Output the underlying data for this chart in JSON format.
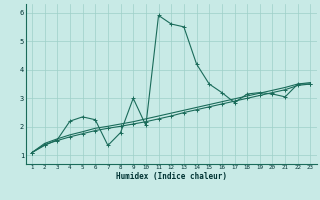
{
  "title": "",
  "xlabel": "Humidex (Indice chaleur)",
  "bg_color": "#c8eae6",
  "line_color": "#1a6b5a",
  "grid_color": "#9ed0c8",
  "spine_color": "#1a6b5a",
  "xlim": [
    0.5,
    23.5
  ],
  "ylim": [
    0.7,
    6.3
  ],
  "xticks": [
    1,
    2,
    3,
    4,
    5,
    6,
    7,
    8,
    9,
    10,
    11,
    12,
    13,
    14,
    15,
    16,
    17,
    18,
    19,
    20,
    21,
    22,
    23
  ],
  "yticks": [
    1,
    2,
    3,
    4,
    5,
    6
  ],
  "x_jagged": [
    1,
    2,
    3,
    4,
    5,
    6,
    7,
    8,
    9,
    10,
    11,
    12,
    13,
    14,
    15,
    16,
    17,
    18,
    19,
    20,
    21,
    22,
    23
  ],
  "y_jagged": [
    1.1,
    1.35,
    1.55,
    2.2,
    2.35,
    2.25,
    1.35,
    1.8,
    3.0,
    2.05,
    5.9,
    5.6,
    5.5,
    4.2,
    3.5,
    3.2,
    2.85,
    3.15,
    3.2,
    3.15,
    3.05,
    3.5,
    3.5
  ],
  "x_trend1": [
    1,
    2,
    3,
    4,
    5,
    6,
    7,
    8,
    9,
    10,
    11,
    12,
    13,
    14,
    15,
    16,
    17,
    18,
    19,
    20,
    21,
    22,
    23
  ],
  "y_trend1": [
    1.1,
    1.38,
    1.52,
    1.65,
    1.76,
    1.87,
    1.95,
    2.02,
    2.1,
    2.18,
    2.28,
    2.38,
    2.5,
    2.6,
    2.7,
    2.8,
    2.9,
    3.0,
    3.1,
    3.2,
    3.3,
    3.45,
    3.5
  ],
  "x_trend2": [
    1,
    2,
    3,
    4,
    5,
    6,
    7,
    8,
    9,
    10,
    11,
    12,
    13,
    14,
    15,
    16,
    17,
    18,
    19,
    20,
    21,
    22,
    23
  ],
  "y_trend2": [
    1.1,
    1.42,
    1.58,
    1.72,
    1.83,
    1.95,
    2.02,
    2.1,
    2.18,
    2.28,
    2.38,
    2.48,
    2.58,
    2.68,
    2.78,
    2.88,
    2.98,
    3.08,
    3.18,
    3.28,
    3.38,
    3.5,
    3.55
  ]
}
